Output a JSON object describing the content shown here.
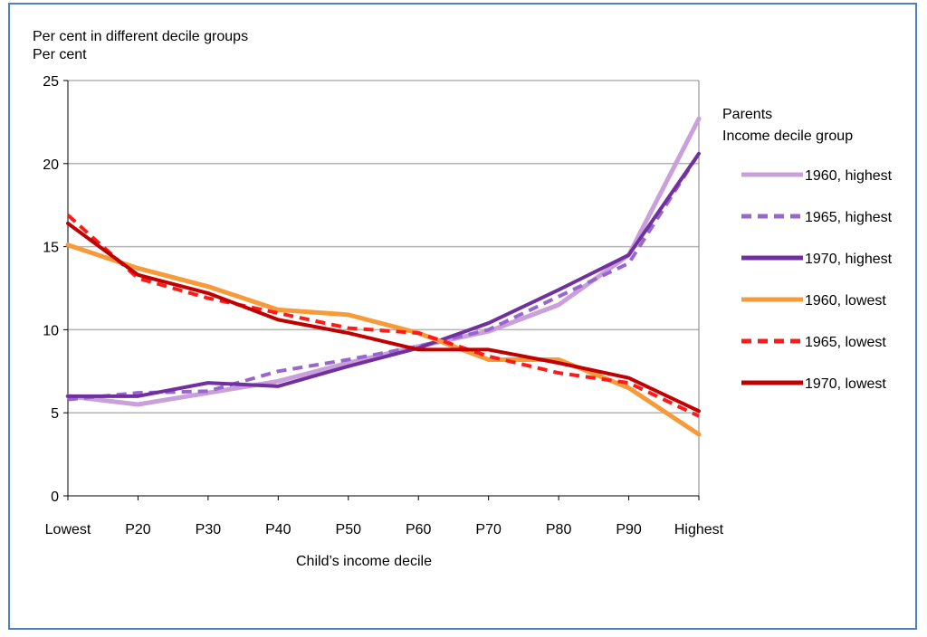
{
  "chart_data": {
    "type": "line",
    "title": "Per cent in different decile groups",
    "ylabel": "Per cent",
    "xlabel": "Child’s income decile",
    "categories": [
      "Lowest",
      "P20",
      "P30",
      "P40",
      "P50",
      "P60",
      "P70",
      "P80",
      "P90",
      "Highest"
    ],
    "ylim": [
      0,
      25
    ],
    "yticks": [
      0,
      5,
      10,
      15,
      20,
      25
    ],
    "grid": true,
    "legend": {
      "placement": "right",
      "title_line1": "Parents",
      "title_line2": "Income decile group"
    },
    "series": [
      {
        "name": "1960, highest",
        "color": "#c9a0dc",
        "dash": "solid",
        "values": [
          6.0,
          5.5,
          6.2,
          6.9,
          8.0,
          9.0,
          9.9,
          11.5,
          14.5,
          22.7
        ]
      },
      {
        "name": "1965, highest",
        "color": "#9966cc",
        "dash": "dashed",
        "values": [
          5.8,
          6.2,
          6.3,
          7.5,
          8.2,
          9.0,
          10.0,
          12.0,
          14.0,
          20.6
        ]
      },
      {
        "name": "1970, highest",
        "color": "#7030a0",
        "dash": "solid",
        "values": [
          6.0,
          6.0,
          6.8,
          6.6,
          7.8,
          8.9,
          10.4,
          12.4,
          14.5,
          20.6
        ]
      },
      {
        "name": "1960, lowest",
        "color": "#f79a3a",
        "dash": "solid",
        "values": [
          15.1,
          13.7,
          12.6,
          11.2,
          10.9,
          9.8,
          8.2,
          8.2,
          6.5,
          3.7
        ]
      },
      {
        "name": "1965, lowest",
        "color": "#ff1a1a",
        "dash": "dashed",
        "values": [
          16.9,
          13.1,
          11.9,
          11.0,
          10.1,
          9.8,
          8.4,
          7.4,
          6.8,
          4.8
        ]
      },
      {
        "name": "1970, lowest",
        "color": "#c00000",
        "dash": "solid",
        "values": [
          16.4,
          13.3,
          12.2,
          10.6,
          9.8,
          8.8,
          8.8,
          8.0,
          7.1,
          5.1
        ]
      }
    ]
  }
}
